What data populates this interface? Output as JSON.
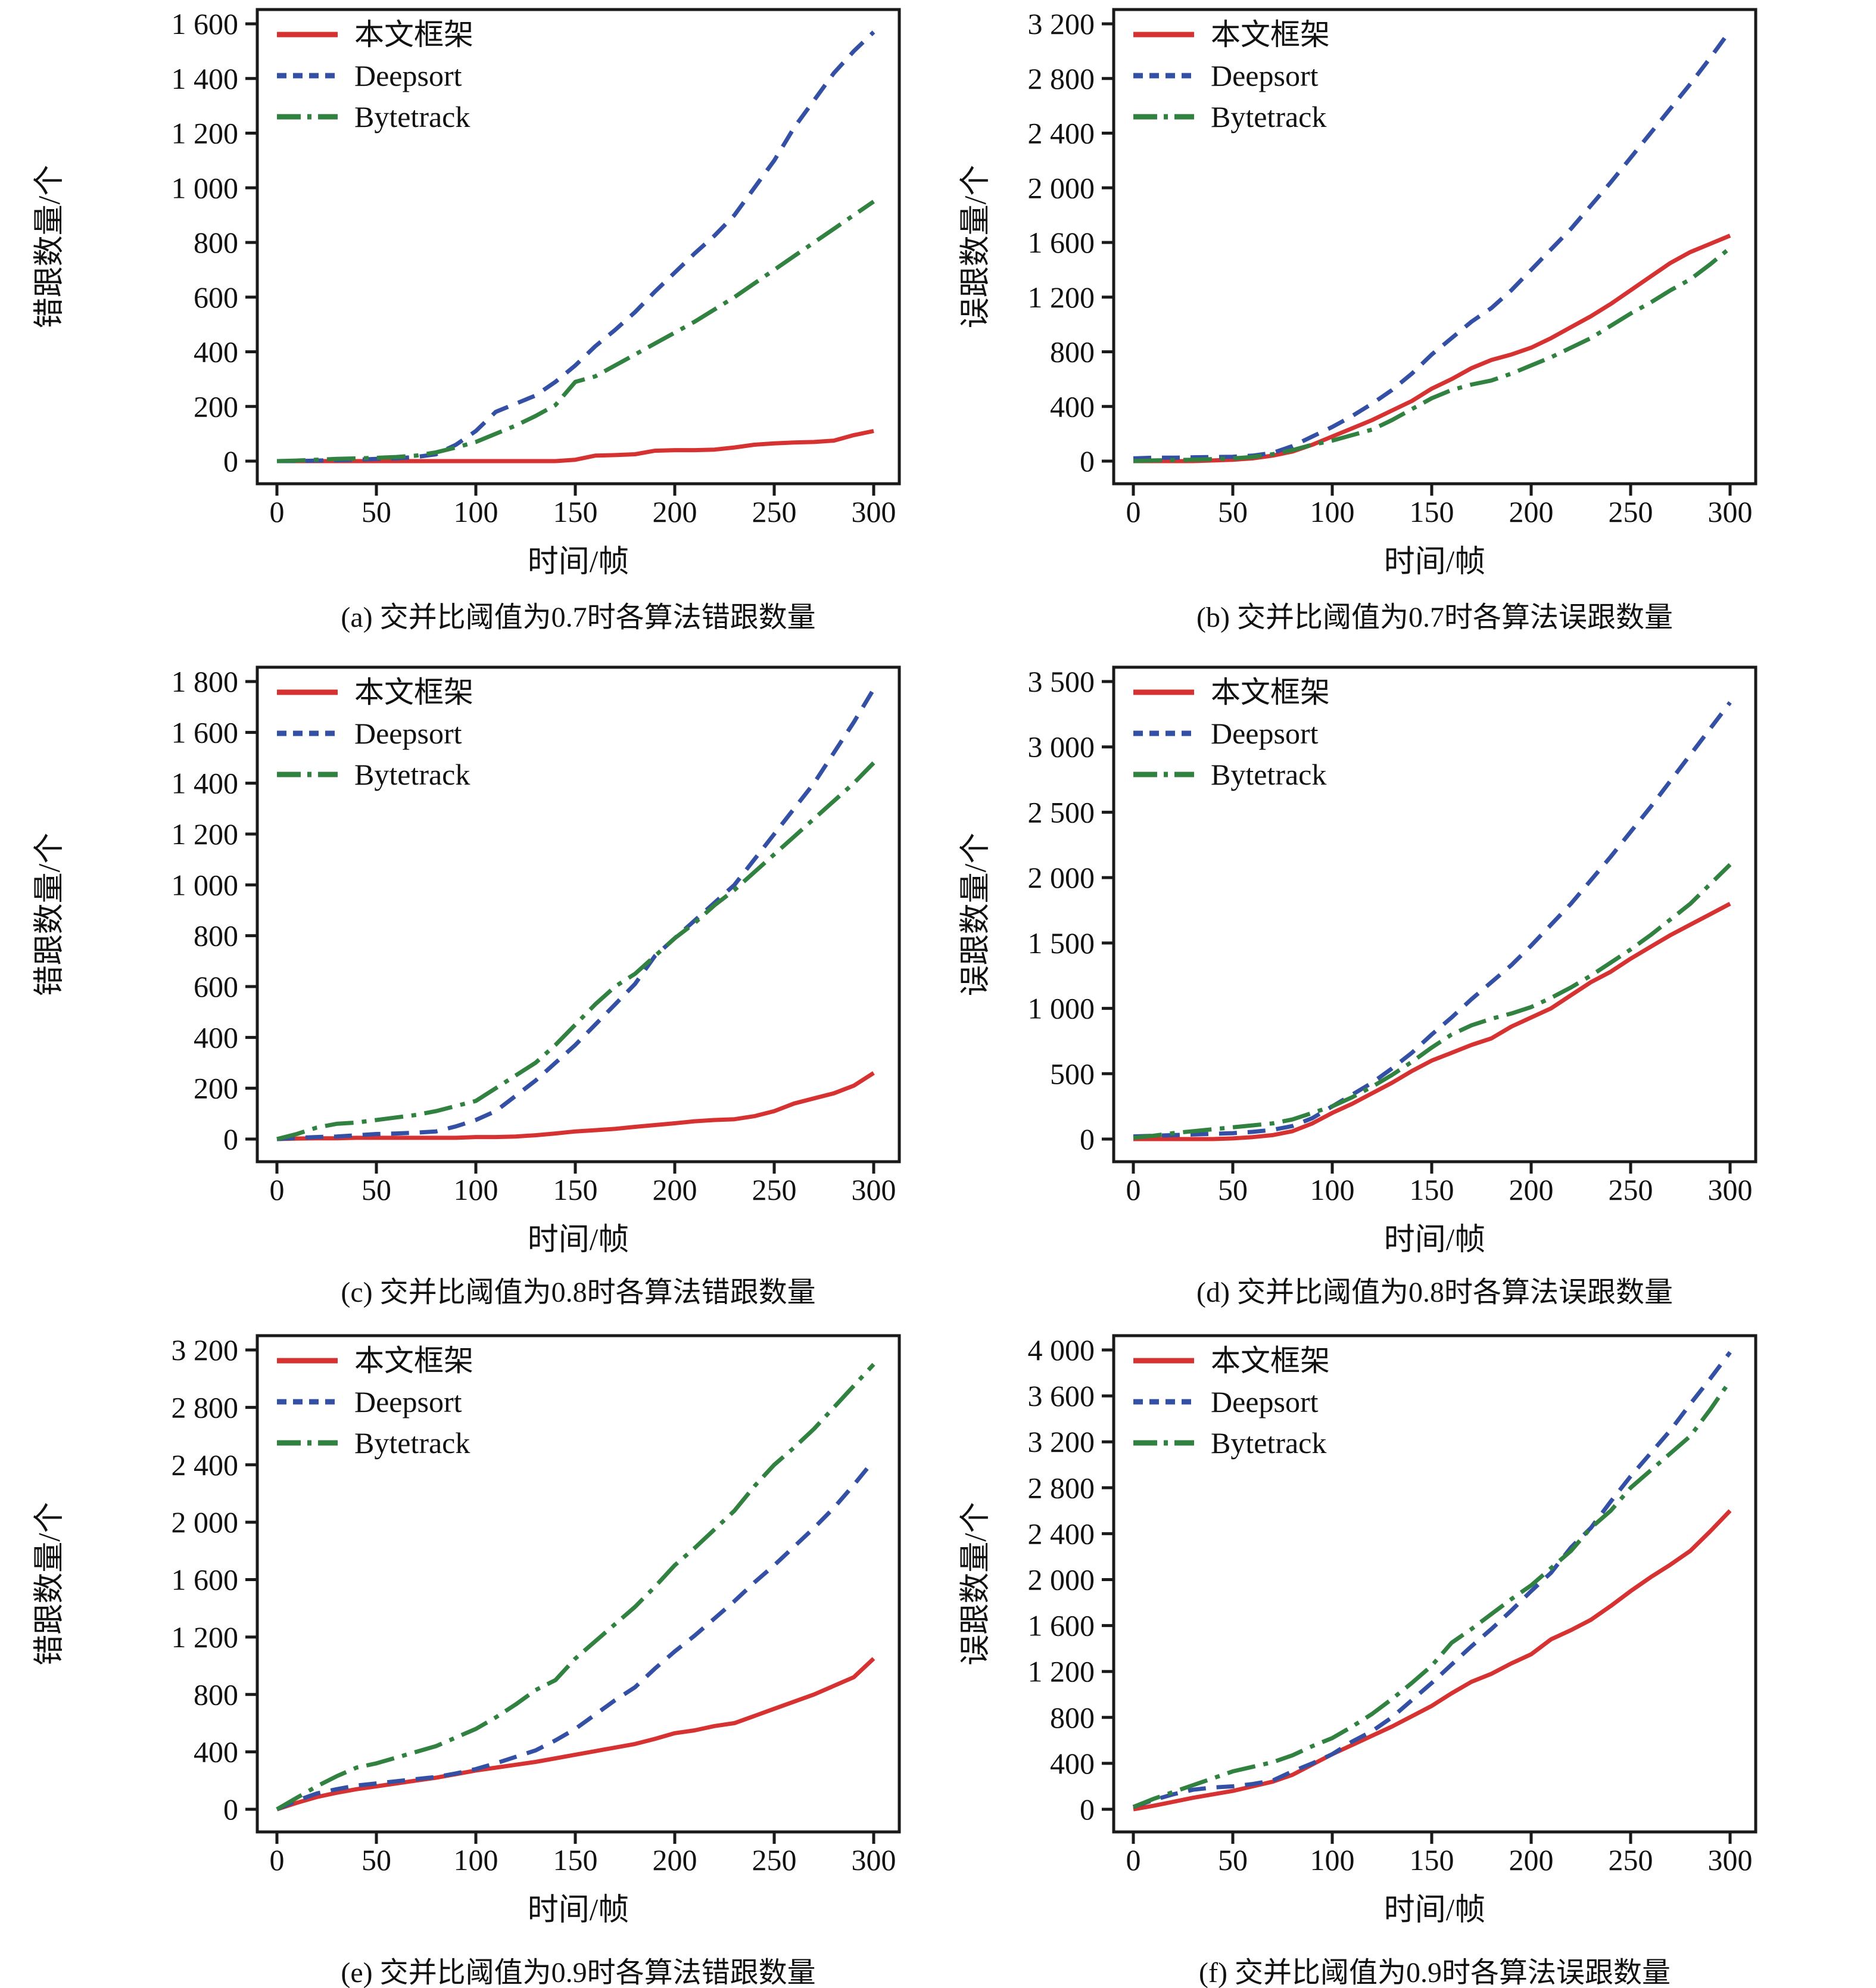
{
  "figure": {
    "background": "#ffffff",
    "axis_color": "#1a1a1a",
    "series_meta": [
      {
        "name": "本文框架",
        "color": "#d53231",
        "style": "solid"
      },
      {
        "name": "Deepsort",
        "color": "#3350a5",
        "style": "dashed"
      },
      {
        "name": "Bytetrack",
        "color": "#318140",
        "style": "dashdot"
      }
    ]
  },
  "chart_data": {
    "type": "line",
    "xlabel": "时间/帧",
    "grid": false,
    "legend_position": "upper left",
    "xlim": [
      0,
      300
    ],
    "xticks": [
      0,
      50,
      100,
      150,
      200,
      250,
      300
    ],
    "x": [
      0,
      10,
      20,
      30,
      40,
      50,
      60,
      70,
      80,
      90,
      100,
      110,
      120,
      130,
      140,
      150,
      160,
      170,
      180,
      190,
      200,
      210,
      220,
      230,
      240,
      250,
      260,
      270,
      280,
      290,
      300
    ],
    "panels": [
      {
        "letter": "a",
        "caption": "(a) 交并比阈值为0.7时各算法错跟数量",
        "ylabel": "错跟数量/个",
        "ylim": [
          0,
          1600
        ],
        "ytick_step": 200,
        "series": [
          {
            "name": "本文框架",
            "values": [
              0,
              0,
              0,
              0,
              0,
              0,
              0,
              0,
              0,
              0,
              0,
              0,
              0,
              0,
              0,
              5,
              20,
              22,
              25,
              38,
              40,
              40,
              42,
              50,
              60,
              65,
              68,
              70,
              75,
              95,
              110
            ]
          },
          {
            "name": "Deepsort",
            "values": [
              0,
              0,
              2,
              3,
              5,
              8,
              10,
              15,
              25,
              60,
              110,
              180,
              210,
              240,
              290,
              350,
              420,
              480,
              545,
              620,
              690,
              760,
              825,
              900,
              1000,
              1100,
              1220,
              1320,
              1420,
              1500,
              1570
            ]
          },
          {
            "name": "Bytetrack",
            "values": [
              0,
              2,
              5,
              8,
              10,
              12,
              15,
              20,
              32,
              50,
              70,
              100,
              130,
              165,
              205,
              290,
              310,
              350,
              390,
              430,
              470,
              510,
              555,
              600,
              650,
              700,
              750,
              800,
              850,
              900,
              950
            ]
          }
        ]
      },
      {
        "letter": "b",
        "caption": "(b) 交并比阈值为0.7时各算法误跟数量",
        "ylabel": "误跟数量/个",
        "ylim": [
          0,
          3200
        ],
        "ytick_step": 400,
        "series": [
          {
            "name": "本文框架",
            "values": [
              0,
              0,
              0,
              0,
              5,
              10,
              20,
              40,
              70,
              120,
              180,
              240,
              300,
              370,
              440,
              530,
              600,
              680,
              740,
              780,
              830,
              900,
              980,
              1060,
              1150,
              1250,
              1350,
              1450,
              1530,
              1590,
              1650
            ]
          },
          {
            "name": "Deepsort",
            "values": [
              20,
              25,
              25,
              28,
              30,
              32,
              40,
              60,
              110,
              180,
              250,
              330,
              420,
              520,
              640,
              780,
              900,
              1020,
              1120,
              1250,
              1400,
              1550,
              1700,
              1870,
              2040,
              2220,
              2400,
              2580,
              2760,
              2950,
              3150
            ]
          },
          {
            "name": "Bytetrack",
            "values": [
              0,
              5,
              8,
              10,
              15,
              20,
              30,
              50,
              80,
              120,
              150,
              190,
              230,
              300,
              380,
              460,
              520,
              560,
              590,
              640,
              700,
              760,
              830,
              900,
              990,
              1080,
              1160,
              1250,
              1330,
              1440,
              1560
            ]
          }
        ]
      },
      {
        "letter": "c",
        "caption": "(c) 交并比阈值为0.8时各算法错跟数量",
        "ylabel": "错跟数量/个",
        "ylim": [
          0,
          1800
        ],
        "ytick_step": 200,
        "series": [
          {
            "name": "本文框架",
            "values": [
              0,
              2,
              3,
              3,
              5,
              5,
              5,
              5,
              5,
              5,
              8,
              8,
              10,
              15,
              22,
              30,
              35,
              40,
              48,
              55,
              62,
              70,
              75,
              78,
              90,
              110,
              140,
              160,
              180,
              210,
              260
            ]
          },
          {
            "name": "Deepsort",
            "values": [
              0,
              5,
              8,
              10,
              15,
              20,
              22,
              25,
              30,
              50,
              75,
              110,
              170,
              230,
              300,
              370,
              450,
              530,
              610,
              720,
              790,
              860,
              930,
              1000,
              1100,
              1200,
              1300,
              1400,
              1520,
              1640,
              1770
            ]
          },
          {
            "name": "Bytetrack",
            "values": [
              0,
              20,
              45,
              60,
              65,
              75,
              85,
              95,
              110,
              130,
              150,
              200,
              250,
              300,
              370,
              450,
              530,
              600,
              650,
              720,
              790,
              850,
              920,
              980,
              1050,
              1120,
              1190,
              1260,
              1330,
              1400,
              1480
            ]
          }
        ]
      },
      {
        "letter": "d",
        "caption": "(d) 交并比阈值为0.8时各算法误跟数量",
        "ylabel": "误跟数量/个",
        "ylim": [
          0,
          3500
        ],
        "ytick_step": 500,
        "series": [
          {
            "name": "本文框架",
            "values": [
              0,
              0,
              0,
              0,
              0,
              5,
              15,
              30,
              60,
              120,
              200,
              270,
              350,
              430,
              520,
              600,
              660,
              720,
              770,
              860,
              930,
              1000,
              1100,
              1200,
              1280,
              1380,
              1470,
              1560,
              1640,
              1720,
              1800
            ]
          },
          {
            "name": "Deepsort",
            "values": [
              20,
              25,
              30,
              35,
              40,
              45,
              55,
              70,
              100,
              160,
              250,
              340,
              430,
              540,
              660,
              800,
              930,
              1070,
              1200,
              1330,
              1480,
              1640,
              1800,
              1980,
              2160,
              2350,
              2540,
              2740,
              2940,
              3140,
              3340
            ]
          },
          {
            "name": "Bytetrack",
            "values": [
              10,
              25,
              45,
              60,
              75,
              90,
              105,
              120,
              150,
              200,
              250,
              320,
              400,
              490,
              590,
              700,
              800,
              870,
              920,
              960,
              1010,
              1080,
              1160,
              1250,
              1350,
              1450,
              1560,
              1680,
              1800,
              1950,
              2100
            ]
          }
        ]
      },
      {
        "letter": "e",
        "caption": "(e) 交并比阈值为0.9时各算法错跟数量",
        "ylabel": "错跟数量/个",
        "ylim": [
          0,
          3200
        ],
        "ytick_step": 400,
        "series": [
          {
            "name": "本文框架",
            "values": [
              0,
              45,
              85,
              115,
              140,
              160,
              180,
              200,
              220,
              245,
              270,
              290,
              310,
              330,
              355,
              380,
              405,
              430,
              455,
              490,
              530,
              550,
              580,
              600,
              650,
              700,
              750,
              800,
              860,
              920,
              1050
            ]
          },
          {
            "name": "Deepsort",
            "values": [
              0,
              60,
              110,
              140,
              165,
              180,
              195,
              210,
              225,
              250,
              280,
              320,
              365,
              410,
              480,
              560,
              660,
              760,
              850,
              980,
              1100,
              1210,
              1330,
              1450,
              1580,
              1700,
              1830,
              1960,
              2100,
              2260,
              2430
            ]
          },
          {
            "name": "Bytetrack",
            "values": [
              0,
              80,
              160,
              230,
              290,
              320,
              360,
              400,
              440,
              500,
              560,
              640,
              730,
              830,
              900,
              1050,
              1170,
              1290,
              1410,
              1550,
              1700,
              1820,
              1950,
              2080,
              2250,
              2400,
              2520,
              2650,
              2800,
              2950,
              3100
            ]
          }
        ]
      },
      {
        "letter": "f",
        "caption": "(f) 交并比阈值为0.9时各算法误跟数量",
        "ylabel": "误跟数量/个",
        "ylim": [
          0,
          4000
        ],
        "ytick_step": 400,
        "series": [
          {
            "name": "本文框架",
            "values": [
              0,
              30,
              65,
              100,
              130,
              160,
              200,
              240,
              300,
              390,
              480,
              560,
              640,
              720,
              810,
              900,
              1010,
              1110,
              1180,
              1270,
              1350,
              1480,
              1560,
              1650,
              1770,
              1900,
              2020,
              2130,
              2250,
              2420,
              2600
            ]
          },
          {
            "name": "Deepsort",
            "values": [
              20,
              80,
              130,
              170,
              190,
              200,
              220,
              250,
              330,
              400,
              480,
              590,
              680,
              800,
              950,
              1100,
              1260,
              1420,
              1570,
              1730,
              1900,
              2060,
              2280,
              2450,
              2680,
              2900,
              3100,
              3300,
              3530,
              3750,
              3980
            ]
          },
          {
            "name": "Bytetrack",
            "values": [
              20,
              90,
              150,
              210,
              270,
              330,
              370,
              410,
              470,
              550,
              620,
              720,
              830,
              960,
              1100,
              1250,
              1450,
              1570,
              1700,
              1830,
              1950,
              2100,
              2250,
              2450,
              2600,
              2800,
              2950,
              3100,
              3250,
              3480,
              3730
            ]
          }
        ]
      }
    ]
  }
}
